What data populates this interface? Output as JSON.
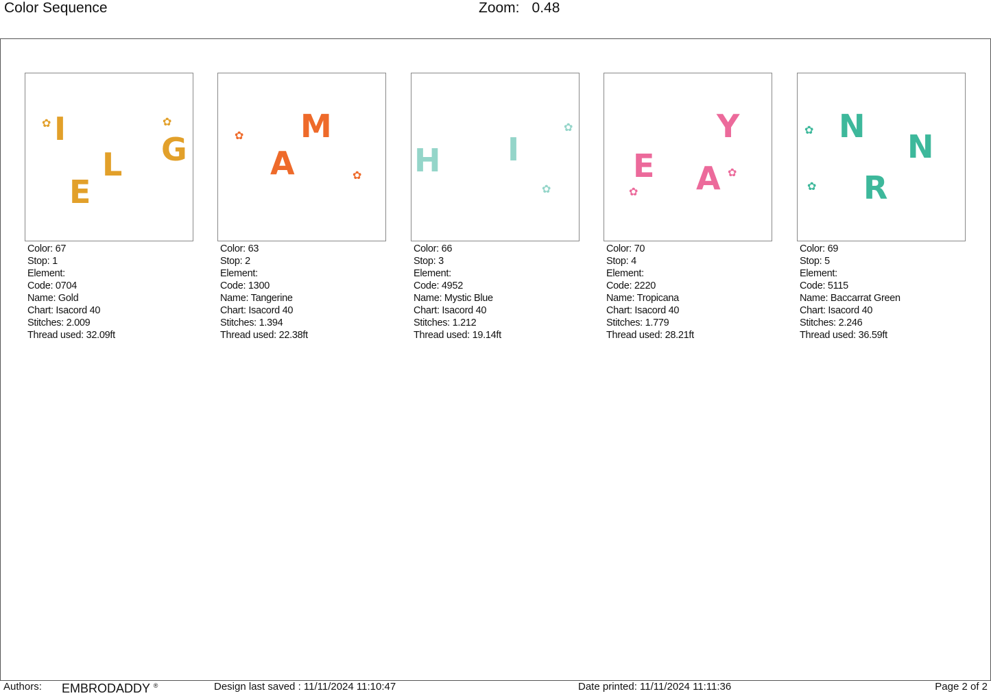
{
  "header": {
    "title": "Color Sequence",
    "zoom_label": "Zoom:",
    "zoom_value": "0.48"
  },
  "panels": [
    {
      "color": "Color: 67",
      "stop": "Stop: 1",
      "element": "Element:",
      "code": "Code: 0704",
      "name": "Name: Gold",
      "chart": "Chart: Isacord 40",
      "stitches": "Stitches: 2.009",
      "thread": "Thread used: 32.09ft",
      "hex": "#E2A02A",
      "letters": [
        "I",
        "L",
        "E",
        "G"
      ]
    },
    {
      "color": "Color: 63",
      "stop": "Stop: 2",
      "element": "Element:",
      "code": "Code: 1300",
      "name": "Name: Tangerine",
      "chart": "Chart: Isacord 40",
      "stitches": "Stitches: 1.394",
      "thread": "Thread used: 22.38ft",
      "hex": "#EE6A2A",
      "letters": [
        "M",
        "A"
      ]
    },
    {
      "color": "Color: 66",
      "stop": "Stop: 3",
      "element": "Element:",
      "code": "Code: 4952",
      "name": "Name: Mystic Blue",
      "chart": "Chart: Isacord 40",
      "stitches": "Stitches: 1.212",
      "thread": "Thread used: 19.14ft",
      "hex": "#94D5C9",
      "letters": [
        "H",
        "I"
      ]
    },
    {
      "color": "Color: 70",
      "stop": "Stop: 4",
      "element": "Element:",
      "code": "Code: 2220",
      "name": "Name: Tropicana",
      "chart": "Chart: Isacord 40",
      "stitches": "Stitches: 1.779",
      "thread": "Thread used: 28.21ft",
      "hex": "#EC6A9B",
      "letters": [
        "Y",
        "E",
        "A"
      ]
    },
    {
      "color": "Color: 69",
      "stop": "Stop: 5",
      "element": "Element:",
      "code": "Code: 5115",
      "name": "Name: Baccarrat Green",
      "chart": "Chart: Isacord 40",
      "stitches": "Stitches: 2.246",
      "thread": "Thread used: 36.59ft",
      "hex": "#3DB89B",
      "letters": [
        "N",
        "N",
        "R"
      ]
    }
  ],
  "footer": {
    "authors_label": "Authors:",
    "author": "EMBRODADDY",
    "registered": "®",
    "saved": "Design last saved : 11/11/2024 11:10:47",
    "printed": "Date printed: 11/11/2024 11:11:36",
    "page": "Page 2 of 2"
  }
}
